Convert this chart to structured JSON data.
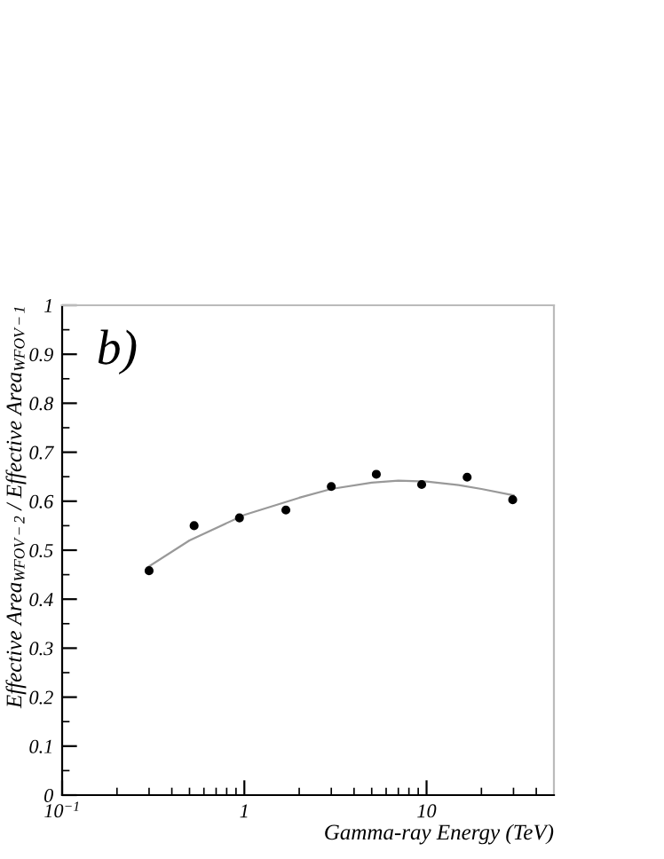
{
  "chart_data": {
    "type": "scatter",
    "xlabel": "Gamma-ray Energy (TeV)",
    "ylabel": "Effective Area$_{WFOV−2}$ / Effective Area$_{WFOV−1}$",
    "log": "x",
    "xlim": [
      0.1,
      50
    ],
    "xticks": [
      {
        "value": 0.1,
        "label": "10$^{−1}$"
      },
      1,
      10
    ],
    "ylim": [
      0,
      1
    ],
    "yticks": [
      0,
      0.1,
      0.2,
      0.3,
      0.4,
      0.5,
      0.6,
      0.7,
      0.8,
      0.9,
      1
    ],
    "grid": false,
    "legend": false,
    "marker": "circle",
    "annotations": [
      "b)"
    ],
    "series": [
      {
        "type": "scatter",
        "color": "#000000",
        "x": [
          0.3,
          0.53,
          0.94,
          1.69,
          3.0,
          5.3,
          9.4,
          16.7,
          29.7
        ],
        "values": [
          0.458,
          0.55,
          0.566,
          0.582,
          0.63,
          0.655,
          0.634,
          0.649,
          0.603
        ]
      },
      {
        "type": "line",
        "color": "#999999",
        "marker": "none",
        "line_style": "solid",
        "x": [
          0.3,
          0.5,
          1,
          2,
          3,
          5,
          7,
          10,
          15,
          20,
          30
        ],
        "values": [
          0.467,
          0.52,
          0.572,
          0.607,
          0.625,
          0.638,
          0.642,
          0.64,
          0.633,
          0.625,
          0.612
        ]
      }
    ]
  }
}
